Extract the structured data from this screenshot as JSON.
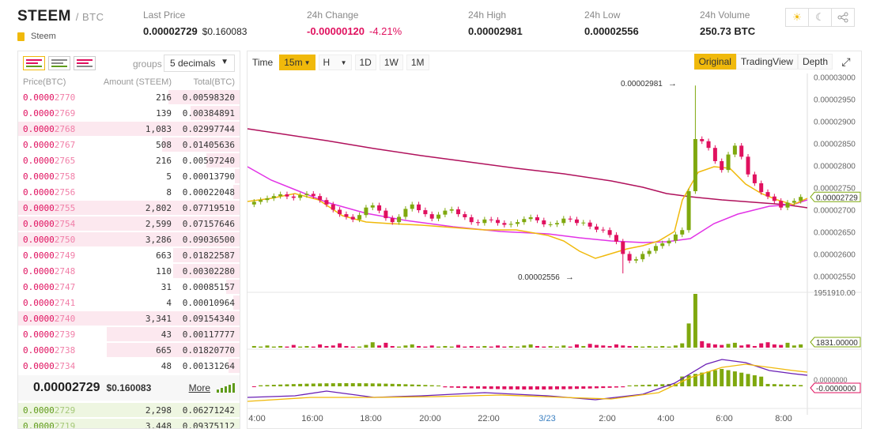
{
  "header": {
    "symbol": "STEEM",
    "quote": "/ BTC",
    "coin_name": "Steem",
    "last_price_label": "Last Price",
    "last_price": "0.00002729",
    "last_price_usd": "$0.160083",
    "change_label": "24h Change",
    "change_value": "-0.00000120",
    "change_pct": "-4.21%",
    "high_label": "24h High",
    "high_value": "0.00002981",
    "low_label": "24h Low",
    "low_value": "0.00002556",
    "volume_label": "24h Volume",
    "volume_value": "250.73 BTC",
    "icons": [
      "sun-icon",
      "moon-icon",
      "share-icon"
    ]
  },
  "orderbook": {
    "groups_label": "groups",
    "groups_value": "5 decimals",
    "col_price": "Price(BTC)",
    "col_amount": "Amount (STEEM)",
    "col_total": "Total(BTC)",
    "asks": [
      {
        "hi": "0.0000",
        "lo": "2770",
        "amount": "216",
        "total": "0.00598320",
        "depth": 0.32
      },
      {
        "hi": "0.0000",
        "lo": "2769",
        "amount": "139",
        "total": "0.00384891",
        "depth": 0.22
      },
      {
        "hi": "0.0000",
        "lo": "2768",
        "amount": "1,083",
        "total": "0.02997744",
        "depth": 1.0
      },
      {
        "hi": "0.0000",
        "lo": "2767",
        "amount": "508",
        "total": "0.01405636",
        "depth": 0.35
      },
      {
        "hi": "0.0000",
        "lo": "2765",
        "amount": "216",
        "total": "0.00597240",
        "depth": 0.15
      },
      {
        "hi": "0.0000",
        "lo": "2758",
        "amount": "5",
        "total": "0.00013790",
        "depth": 0.02
      },
      {
        "hi": "0.0000",
        "lo": "2756",
        "amount": "8",
        "total": "0.00022048",
        "depth": 0.03
      },
      {
        "hi": "0.0000",
        "lo": "2755",
        "amount": "2,802",
        "total": "0.07719510",
        "depth": 1.0
      },
      {
        "hi": "0.0000",
        "lo": "2754",
        "amount": "2,599",
        "total": "0.07157646",
        "depth": 1.0
      },
      {
        "hi": "0.0000",
        "lo": "2750",
        "amount": "3,286",
        "total": "0.09036500",
        "depth": 1.0
      },
      {
        "hi": "0.0000",
        "lo": "2749",
        "amount": "663",
        "total": "0.01822587",
        "depth": 0.3
      },
      {
        "hi": "0.0000",
        "lo": "2748",
        "amount": "110",
        "total": "0.00302280",
        "depth": 0.3
      },
      {
        "hi": "0.0000",
        "lo": "2747",
        "amount": "31",
        "total": "0.00085157",
        "depth": 0.06
      },
      {
        "hi": "0.0000",
        "lo": "2741",
        "amount": "4",
        "total": "0.00010964",
        "depth": 0.03
      },
      {
        "hi": "0.0000",
        "lo": "2740",
        "amount": "3,341",
        "total": "0.09154340",
        "depth": 1.0
      },
      {
        "hi": "0.0000",
        "lo": "2739",
        "amount": "43",
        "total": "0.00117777",
        "depth": 0.6
      },
      {
        "hi": "0.0000",
        "lo": "2738",
        "amount": "665",
        "total": "0.01820770",
        "depth": 0.6
      },
      {
        "hi": "0.0000",
        "lo": "2734",
        "amount": "48",
        "total": "0.00131264",
        "depth": 0.05
      }
    ],
    "last_price": "0.00002729",
    "last_price_usd": "$0.160083",
    "more_label": "More",
    "bids": [
      {
        "hi": "0.0000",
        "lo": "2729",
        "amount": "2,298",
        "total": "0.06271242",
        "depth": 1.0
      },
      {
        "hi": "0.0000",
        "lo": "2719",
        "amount": "3,448",
        "total": "0.09375112",
        "depth": 1.0
      }
    ]
  },
  "chart_toolbar": {
    "time_label": "Time",
    "intervals": [
      "15m",
      "H",
      "1D",
      "1W",
      "1M"
    ],
    "active_interval": "15m",
    "views": [
      "Original",
      "TradingView",
      "Depth"
    ],
    "active_view": "Original"
  },
  "chart_data": {
    "type": "candlestick",
    "price_axis": [
      "0.00003000",
      "0.00002950",
      "0.00002900",
      "0.00002850",
      "0.00002800",
      "0.00002750",
      "0.00002700",
      "0.00002650",
      "0.00002600",
      "0.00002550"
    ],
    "price_range": [
      2.54e-05,
      3.003e-05
    ],
    "time_labels": [
      "4:00",
      "16:00",
      "18:00",
      "20:00",
      "22:00",
      "3/23",
      "2:00",
      "4:00",
      "6:00",
      "8:00"
    ],
    "current_price_label": "0.00002729",
    "high_annotation": "0.00002981",
    "low_annotation": "0.00002556",
    "volume_axis_max": "1951910.00",
    "volume_ma_label": "1831.00000",
    "macd_label": "-0.0000000",
    "macd_zero_label": "0.0000000",
    "colors": {
      "up": "#7fa80e",
      "down": "#e0115f",
      "ma_short": "#f0b90b",
      "ma_mid": "#e233e6",
      "ma_long": "#b0115c",
      "dif": "#6a1fb5",
      "dea": "#f0b90b"
    }
  }
}
